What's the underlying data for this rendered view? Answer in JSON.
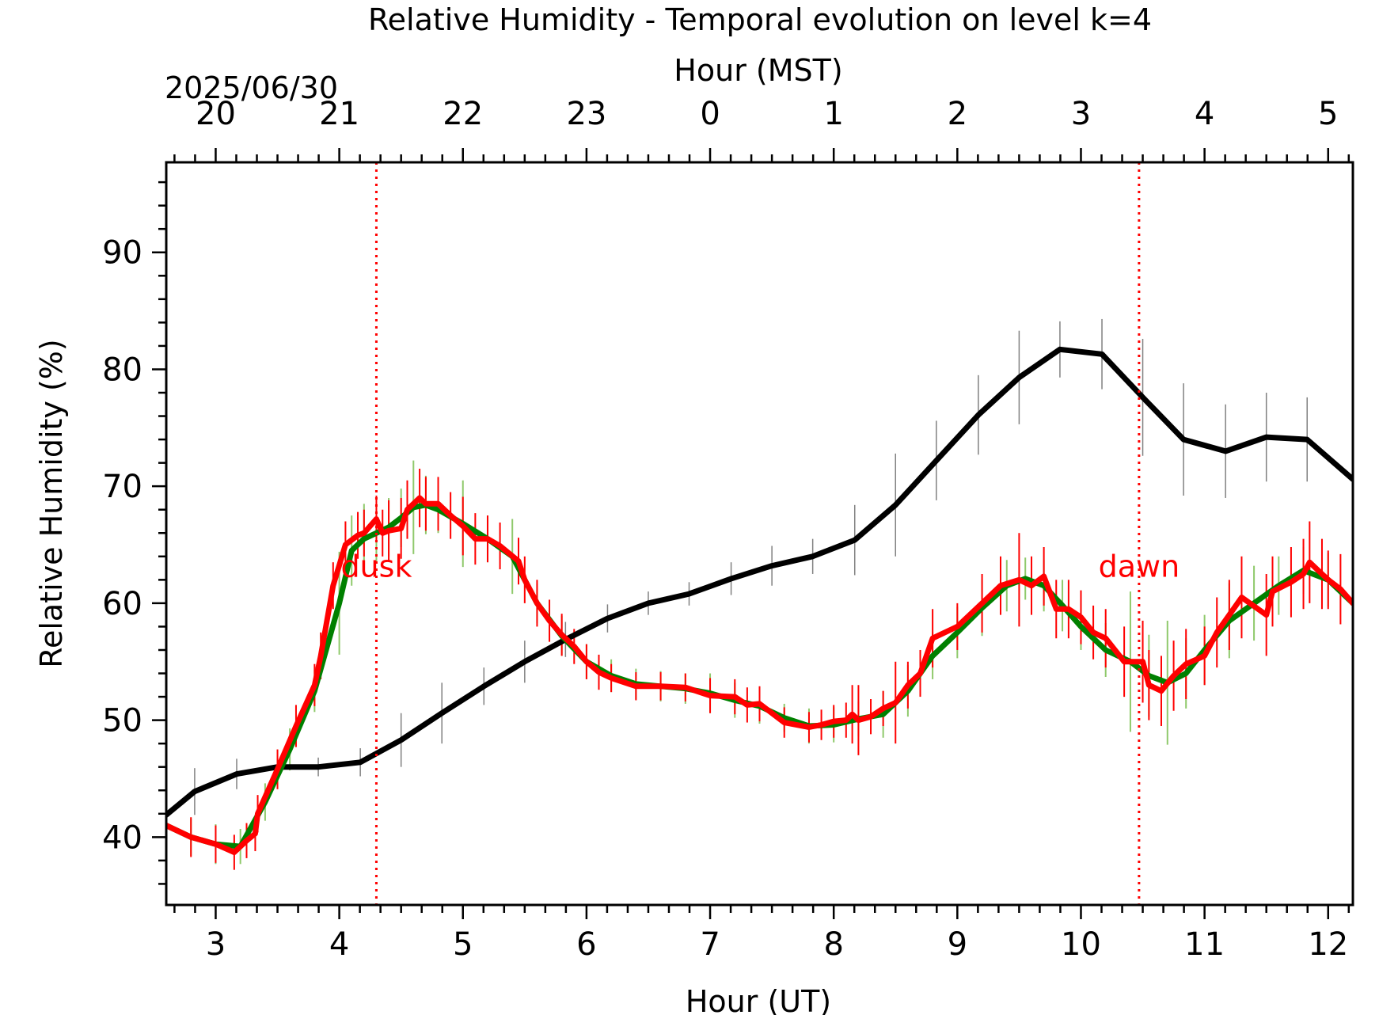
{
  "chart_data": {
    "type": "line",
    "title": "Relative Humidity - Temporal evolution on level k=4",
    "xlabel": "Hour (UT)",
    "x2label": "Hour (MST)",
    "ylabel": "Relative Humidity (%)",
    "date_label": "2025/06/30",
    "xlim": [
      2.6,
      12.2
    ],
    "ylim": [
      34.2,
      97.7
    ],
    "x_ticks": [
      3,
      4,
      5,
      6,
      7,
      8,
      9,
      10,
      11,
      12
    ],
    "x_tick_labels": [
      "3",
      "4",
      "5",
      "6",
      "7",
      "8",
      "9",
      "10",
      "11",
      "12"
    ],
    "x2_ticks": [
      3,
      4,
      5,
      6,
      7,
      8,
      9,
      10,
      11,
      12
    ],
    "x2_tick_labels": [
      "20",
      "21",
      "22",
      "23",
      "0",
      "1",
      "2",
      "3",
      "4",
      "5"
    ],
    "y_ticks": [
      40,
      50,
      60,
      70,
      80,
      90
    ],
    "y_tick_labels": [
      "40",
      "50",
      "60",
      "70",
      "80",
      "90"
    ],
    "grid": false,
    "legend": "none",
    "vlines": [
      {
        "x": 4.3,
        "label": "dusk",
        "color": "#ff0000",
        "style": "dotted"
      },
      {
        "x": 10.47,
        "label": "dawn",
        "color": "#ff0000",
        "style": "dotted"
      }
    ],
    "series": [
      {
        "color": "#000000",
        "errbar_color": "#808080",
        "x": [
          2.6,
          2.83,
          3.17,
          3.5,
          3.83,
          4.17,
          4.5,
          4.83,
          5.17,
          5.5,
          5.83,
          6.17,
          6.5,
          6.83,
          7.17,
          7.5,
          7.83,
          8.17,
          8.5,
          8.83,
          9.17,
          9.5,
          9.83,
          10.17,
          10.5,
          10.83,
          11.17,
          11.5,
          11.83,
          12.2
        ],
        "y": [
          41.9,
          43.9,
          45.4,
          46.0,
          46.0,
          46.4,
          48.3,
          50.6,
          52.9,
          55.0,
          56.9,
          58.7,
          60.0,
          60.8,
          62.1,
          63.2,
          64.0,
          65.4,
          68.4,
          72.2,
          76.1,
          79.3,
          81.7,
          81.3,
          77.6,
          74.0,
          73.0,
          74.2,
          74.0,
          70.6
        ],
        "err": [
          1.8,
          2.0,
          1.3,
          1.0,
          0.8,
          1.2,
          2.3,
          2.6,
          1.6,
          1.8,
          1.5,
          1.2,
          1.0,
          1.0,
          1.4,
          1.7,
          1.5,
          3.0,
          4.4,
          3.4,
          3.4,
          4.0,
          2.4,
          3.0,
          5.0,
          4.8,
          4.0,
          3.8,
          3.6,
          4.6
        ]
      },
      {
        "color": "#008000",
        "errbar_color": "#8fc96b",
        "x": [
          2.6,
          2.8,
          3.0,
          3.2,
          3.4,
          3.6,
          3.8,
          4.0,
          4.1,
          4.2,
          4.3,
          4.4,
          4.5,
          4.6,
          4.7,
          4.8,
          5.0,
          5.2,
          5.4,
          5.6,
          5.8,
          6.0,
          6.2,
          6.4,
          6.6,
          6.8,
          7.0,
          7.2,
          7.4,
          7.6,
          7.8,
          8.0,
          8.2,
          8.4,
          8.6,
          8.8,
          9.0,
          9.2,
          9.4,
          9.55,
          9.7,
          9.85,
          10.0,
          10.2,
          10.4,
          10.55,
          10.7,
          10.85,
          11.0,
          11.2,
          11.4,
          11.6,
          11.8,
          12.0,
          12.2
        ],
        "y": [
          41.0,
          40.0,
          39.4,
          39.2,
          43.0,
          47.5,
          52.5,
          60.0,
          64.5,
          65.5,
          66.0,
          66.5,
          67.3,
          68.2,
          68.4,
          68.0,
          66.8,
          65.5,
          64.0,
          60.0,
          57.2,
          55.0,
          53.8,
          53.1,
          52.9,
          52.7,
          52.3,
          51.7,
          51.2,
          50.2,
          49.5,
          49.6,
          50.1,
          50.5,
          52.5,
          55.5,
          57.5,
          59.6,
          61.5,
          62.1,
          61.5,
          59.8,
          58.0,
          56.0,
          55.0,
          53.8,
          53.2,
          54.0,
          56.0,
          58.5,
          60.0,
          61.5,
          62.8,
          62.0,
          60.0
        ],
        "err": [
          1.6,
          1.6,
          1.7,
          1.5,
          1.6,
          1.8,
          1.8,
          4.4,
          3.0,
          3.0,
          2.5,
          2.5,
          2.5,
          4.0,
          2.5,
          2.0,
          3.7,
          2.0,
          3.2,
          1.7,
          1.7,
          1.5,
          1.4,
          1.3,
          1.3,
          1.3,
          1.7,
          1.5,
          1.5,
          1.2,
          1.5,
          1.5,
          1.5,
          2.0,
          2.2,
          2.0,
          2.2,
          2.4,
          2.2,
          1.8,
          2.2,
          2.2,
          2.0,
          2.3,
          6.0,
          3.5,
          5.3,
          3.0,
          3.0,
          3.2,
          3.2,
          2.5,
          2.0,
          2.3,
          2.7
        ]
      },
      {
        "color": "#ff0000",
        "errbar_color": "#ff0000",
        "x": [
          2.6,
          2.8,
          3.0,
          3.15,
          3.25,
          3.32,
          3.34,
          3.5,
          3.65,
          3.8,
          3.85,
          3.95,
          4.05,
          4.15,
          4.2,
          4.3,
          4.35,
          4.4,
          4.5,
          4.55,
          4.65,
          4.7,
          4.8,
          4.9,
          5.0,
          5.1,
          5.2,
          5.3,
          5.45,
          5.5,
          5.6,
          5.7,
          5.8,
          5.9,
          6.0,
          6.1,
          6.2,
          6.4,
          6.6,
          6.8,
          7.0,
          7.2,
          7.3,
          7.4,
          7.6,
          7.8,
          7.9,
          8.0,
          8.1,
          8.15,
          8.2,
          8.3,
          8.4,
          8.5,
          8.6,
          8.7,
          8.8,
          9.0,
          9.2,
          9.35,
          9.5,
          9.6,
          9.7,
          9.8,
          9.9,
          10.0,
          10.1,
          10.2,
          10.35,
          10.5,
          10.55,
          10.65,
          10.75,
          10.85,
          11.0,
          11.1,
          11.2,
          11.3,
          11.5,
          11.55,
          11.7,
          11.8,
          11.85,
          11.95,
          12.0,
          12.1,
          12.2
        ],
        "y": [
          41.0,
          40.0,
          39.4,
          38.7,
          39.7,
          40.3,
          42.0,
          45.8,
          49.5,
          53.0,
          55.5,
          61.5,
          65.0,
          65.8,
          66.0,
          67.2,
          66.0,
          66.2,
          66.4,
          68.0,
          69.0,
          68.5,
          68.5,
          67.5,
          66.6,
          65.5,
          65.5,
          64.9,
          63.6,
          62.0,
          60.0,
          58.5,
          57.3,
          56.3,
          55.0,
          54.1,
          53.6,
          52.9,
          52.9,
          52.8,
          52.1,
          52.0,
          51.3,
          51.4,
          49.8,
          49.4,
          49.6,
          49.9,
          50.0,
          50.5,
          50.0,
          50.3,
          51.0,
          51.5,
          53.0,
          54.0,
          57.0,
          58.0,
          60.0,
          61.5,
          62.0,
          61.5,
          62.3,
          59.5,
          59.5,
          58.8,
          57.5,
          57.0,
          55.0,
          55.0,
          53.0,
          52.5,
          53.8,
          54.8,
          55.5,
          57.5,
          59.0,
          60.5,
          59.0,
          61.0,
          61.8,
          62.5,
          63.5,
          62.5,
          62.0,
          61.2,
          60.0
        ],
        "err": [
          1.6,
          1.7,
          1.6,
          1.5,
          1.5,
          1.5,
          1.6,
          1.7,
          1.8,
          1.8,
          2.0,
          2.0,
          2.0,
          2.0,
          2.0,
          2.0,
          2.0,
          2.6,
          2.6,
          2.5,
          2.5,
          2.3,
          2.3,
          2.0,
          2.5,
          2.2,
          2.0,
          2.0,
          2.0,
          2.0,
          2.0,
          1.8,
          1.8,
          1.5,
          1.5,
          1.5,
          1.2,
          1.2,
          1.2,
          1.2,
          1.5,
          1.5,
          1.5,
          1.5,
          1.3,
          1.3,
          1.3,
          1.4,
          1.5,
          2.5,
          3.0,
          1.5,
          1.5,
          3.5,
          2.0,
          2.0,
          2.5,
          2.0,
          2.5,
          2.5,
          4.0,
          2.5,
          2.5,
          2.5,
          2.5,
          2.3,
          2.3,
          2.5,
          3.0,
          3.5,
          3.0,
          3.0,
          3.0,
          3.0,
          2.5,
          3.0,
          3.0,
          3.5,
          3.5,
          3.0,
          3.0,
          3.0,
          3.5,
          3.0,
          2.5,
          3.0,
          4.0
        ]
      }
    ]
  }
}
